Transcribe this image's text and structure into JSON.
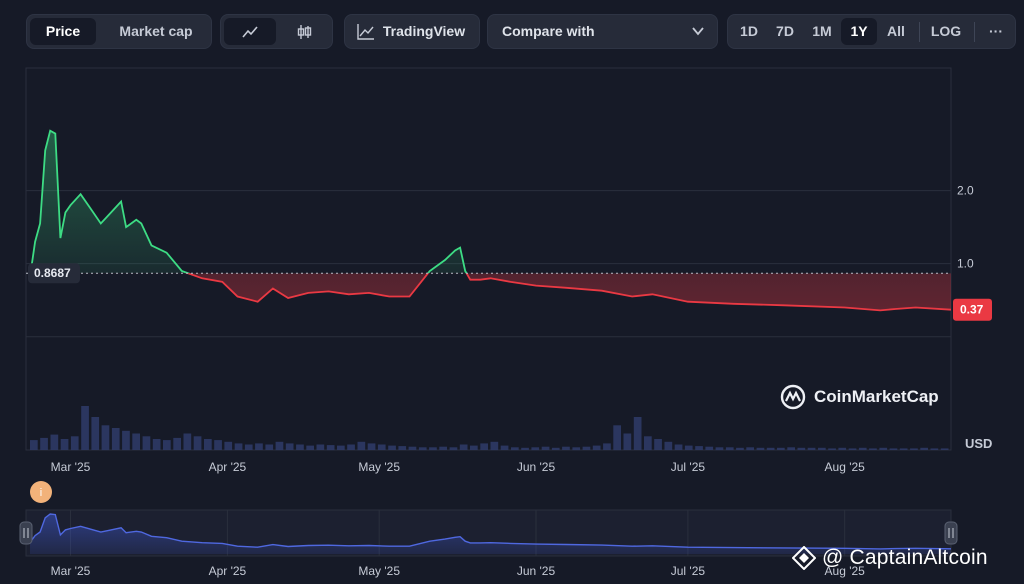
{
  "toolbar": {
    "price_label": "Price",
    "market_cap_label": "Market cap",
    "tradingview_label": "TradingView",
    "compare_label": "Compare with",
    "ranges": [
      "1D",
      "7D",
      "1M",
      "1Y",
      "All"
    ],
    "active_range": "1Y",
    "log_label": "LOG",
    "more_label": "···"
  },
  "colors": {
    "up": "#3ddc84",
    "down": "#ea3943",
    "bg": "#161a27",
    "grid": "#2a2f3d",
    "navigator": "#3d56c9"
  },
  "watermark": "CoinMarketCap",
  "credit": "@ CaptainAltcoin",
  "event_marker": "i",
  "chart_data": {
    "type": "line",
    "title": "",
    "currency_label": "USD",
    "baseline_value": "0.8687",
    "baseline": 0.8687,
    "current_value_label": "0.37",
    "current_value": 0.37,
    "y_ticks": [
      "2.0",
      "1.0"
    ],
    "ylim": [
      -1.55,
      3.65
    ],
    "x_ticks": [
      "Mar '25",
      "Apr '25",
      "May '25",
      "Jun '25",
      "Jul '25",
      "Aug '25"
    ],
    "x_range": [
      "2025-02-21",
      "2025-08-22"
    ],
    "series": [
      {
        "x": [
          "2025-02-21",
          "2025-02-22",
          "2025-02-23",
          "2025-02-24",
          "2025-02-25",
          "2025-02-26",
          "2025-02-27",
          "2025-02-28",
          "2025-03-01",
          "2025-03-03",
          "2025-03-05",
          "2025-03-07",
          "2025-03-09",
          "2025-03-11",
          "2025-03-12",
          "2025-03-14",
          "2025-03-15",
          "2025-03-17",
          "2025-03-20",
          "2025-03-23",
          "2025-03-27",
          "2025-03-31",
          "2025-04-03",
          "2025-04-07",
          "2025-04-10",
          "2025-04-13",
          "2025-04-17",
          "2025-04-21",
          "2025-04-25",
          "2025-04-29",
          "2025-05-03",
          "2025-05-07",
          "2025-05-11",
          "2025-05-14",
          "2025-05-16",
          "2025-05-17",
          "2025-05-18",
          "2025-05-19",
          "2025-05-21",
          "2025-05-23",
          "2025-05-27",
          "2025-06-01",
          "2025-06-07",
          "2025-06-14",
          "2025-06-20",
          "2025-06-24",
          "2025-07-01",
          "2025-07-10",
          "2025-07-20",
          "2025-08-01",
          "2025-08-08",
          "2025-08-11",
          "2025-08-15",
          "2025-08-22"
        ],
        "values": [
          0.82,
          1.3,
          1.55,
          2.55,
          2.82,
          2.78,
          1.35,
          1.7,
          1.8,
          1.95,
          1.75,
          1.55,
          1.7,
          1.85,
          1.5,
          1.6,
          1.55,
          1.25,
          1.15,
          0.9,
          0.8,
          0.75,
          0.55,
          0.48,
          0.66,
          0.53,
          0.6,
          0.62,
          0.58,
          0.6,
          0.55,
          0.55,
          0.9,
          1.05,
          1.18,
          1.22,
          0.9,
          0.78,
          0.78,
          0.8,
          0.75,
          0.7,
          0.67,
          0.63,
          0.55,
          0.58,
          0.48,
          0.45,
          0.43,
          0.4,
          0.36,
          0.38,
          0.4,
          0.37
        ]
      }
    ],
    "volume": [
      0.18,
      0.22,
      0.28,
      0.2,
      0.25,
      0.8,
      0.6,
      0.45,
      0.4,
      0.35,
      0.3,
      0.25,
      0.2,
      0.18,
      0.22,
      0.3,
      0.25,
      0.2,
      0.18,
      0.15,
      0.12,
      0.1,
      0.12,
      0.1,
      0.15,
      0.12,
      0.1,
      0.08,
      0.1,
      0.09,
      0.08,
      0.1,
      0.15,
      0.12,
      0.1,
      0.08,
      0.07,
      0.06,
      0.05,
      0.05,
      0.06,
      0.05,
      0.1,
      0.08,
      0.12,
      0.15,
      0.08,
      0.05,
      0.04,
      0.05,
      0.06,
      0.04,
      0.06,
      0.05,
      0.06,
      0.08,
      0.12,
      0.45,
      0.3,
      0.6,
      0.25,
      0.2,
      0.15,
      0.1,
      0.08,
      0.07,
      0.06,
      0.05,
      0.05,
      0.04,
      0.05,
      0.04,
      0.04,
      0.04,
      0.05,
      0.04,
      0.04,
      0.04,
      0.03,
      0.04,
      0.03,
      0.04,
      0.03,
      0.04,
      0.03,
      0.03,
      0.03,
      0.04,
      0.03,
      0.03
    ],
    "grid": true
  }
}
